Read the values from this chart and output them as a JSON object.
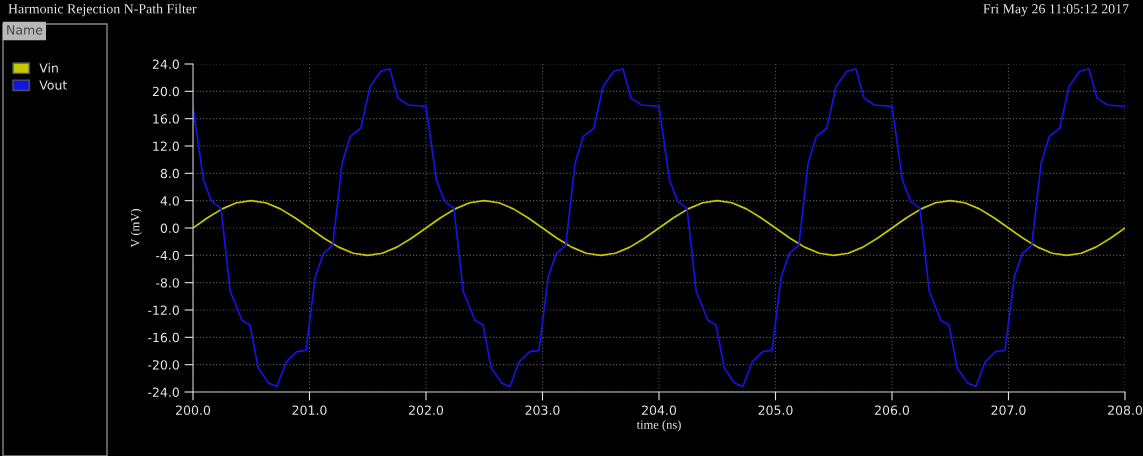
{
  "chart_data": {
    "type": "line",
    "title": "Harmonic Rejection N-Path Filter",
    "xlabel": "time (ns)",
    "ylabel": "V (mV)",
    "annotations": [
      "Fri May 26 11:05:12 2017",
      "Name"
    ],
    "series": [
      {
        "name": "Vin",
        "color": "#c8c800",
        "x": [
          200.0,
          200.125,
          200.25,
          200.375,
          200.5,
          200.625,
          200.75,
          200.875,
          201.0,
          201.125,
          201.25,
          201.375,
          201.5,
          201.625,
          201.75,
          201.875,
          202.0,
          202.125,
          202.25,
          202.375,
          202.5,
          202.625,
          202.75,
          202.875,
          203.0,
          203.125,
          203.25,
          203.375,
          203.5,
          203.625,
          203.75,
          203.875,
          204.0,
          204.125,
          204.25,
          204.375,
          204.5,
          204.625,
          204.75,
          204.875,
          205.0,
          205.125,
          205.25,
          205.375,
          205.5,
          205.625,
          205.75,
          205.875,
          206.0,
          206.125,
          206.25,
          206.375,
          206.5,
          206.625,
          206.75,
          206.875,
          207.0,
          207.125,
          207.25,
          207.375,
          207.5,
          207.625,
          207.75,
          207.875,
          208.0
        ],
        "values": [
          0,
          1.5,
          2.8,
          3.7,
          4.0,
          3.7,
          2.8,
          1.5,
          0,
          -1.5,
          -2.8,
          -3.7,
          -4.0,
          -3.7,
          -2.8,
          -1.5,
          0,
          1.5,
          2.8,
          3.7,
          4.0,
          3.7,
          2.8,
          1.5,
          0,
          -1.5,
          -2.8,
          -3.7,
          -4.0,
          -3.7,
          -2.8,
          -1.5,
          0,
          1.5,
          2.8,
          3.7,
          4.0,
          3.7,
          2.8,
          1.5,
          0,
          -1.5,
          -2.8,
          -3.7,
          -4.0,
          -3.7,
          -2.8,
          -1.5,
          0,
          1.5,
          2.8,
          3.7,
          4.0,
          3.7,
          2.8,
          1.5,
          0,
          -1.5,
          -2.8,
          -3.7,
          -4.0,
          -3.7,
          -2.8,
          -1.5,
          0
        ]
      },
      {
        "name": "Vout",
        "color": "#1414e6",
        "x": [
          200.0,
          200.09,
          200.16,
          200.24,
          200.32,
          200.42,
          200.49,
          200.56,
          200.65,
          200.72,
          200.8,
          200.89,
          200.97,
          201.05,
          201.12,
          201.2,
          201.28,
          201.35,
          201.44,
          201.52,
          201.61,
          201.69,
          201.76,
          201.85,
          202.0,
          202.09,
          202.16,
          202.24,
          202.32,
          202.42,
          202.49,
          202.56,
          202.65,
          202.72,
          202.8,
          202.89,
          202.97,
          203.05,
          203.12,
          203.2,
          203.28,
          203.35,
          203.44,
          203.52,
          203.61,
          203.69,
          203.76,
          203.85,
          204.0,
          204.09,
          204.16,
          204.24,
          204.32,
          204.42,
          204.49,
          204.56,
          204.65,
          204.72,
          204.8,
          204.89,
          204.97,
          205.05,
          205.12,
          205.2,
          205.28,
          205.35,
          205.44,
          205.52,
          205.61,
          205.69,
          205.76,
          205.85,
          206.0,
          206.09,
          206.16,
          206.24,
          206.32,
          206.42,
          206.49,
          206.56,
          206.65,
          206.72,
          206.8,
          206.89,
          206.97,
          207.05,
          207.12,
          207.2,
          207.28,
          207.35,
          207.44,
          207.52,
          207.61,
          207.69,
          207.76,
          207.85,
          208.0
        ],
        "values": [
          17.8,
          7.0,
          3.9,
          2.9,
          -9.3,
          -13.5,
          -14.2,
          -20.5,
          -22.7,
          -23.2,
          -19.6,
          -18.1,
          -17.9,
          -7.1,
          -3.7,
          -2.5,
          9.5,
          13.4,
          14.6,
          20.7,
          22.9,
          23.3,
          19.0,
          18.0,
          17.8,
          7.0,
          3.9,
          2.9,
          -9.3,
          -13.5,
          -14.2,
          -20.5,
          -22.7,
          -23.2,
          -19.6,
          -18.1,
          -17.9,
          -7.1,
          -3.7,
          -2.5,
          9.5,
          13.4,
          14.6,
          20.7,
          22.9,
          23.3,
          19.0,
          18.0,
          17.8,
          7.0,
          3.9,
          2.9,
          -9.3,
          -13.5,
          -14.2,
          -20.5,
          -22.7,
          -23.2,
          -19.6,
          -18.1,
          -17.9,
          -7.1,
          -3.7,
          -2.5,
          9.5,
          13.4,
          14.6,
          20.7,
          22.9,
          23.3,
          19.0,
          18.0,
          17.8,
          7.0,
          3.9,
          2.9,
          -9.3,
          -13.5,
          -14.2,
          -20.5,
          -22.7,
          -23.2,
          -19.6,
          -18.1,
          -17.9,
          -7.1,
          -3.7,
          -2.5,
          9.5,
          13.4,
          14.6,
          20.7,
          22.9,
          23.3,
          19.0,
          18.0,
          17.8
        ]
      }
    ],
    "xlim": [
      200,
      208
    ],
    "ylim": [
      -24,
      24
    ],
    "xticks": [
      {
        "value": 200,
        "label": "200.0"
      },
      {
        "value": 201,
        "label": "201.0"
      },
      {
        "value": 202,
        "label": "202.0"
      },
      {
        "value": 203,
        "label": "203.0"
      },
      {
        "value": 204,
        "label": "204.0"
      },
      {
        "value": 205,
        "label": "205.0"
      },
      {
        "value": 206,
        "label": "206.0"
      },
      {
        "value": 207,
        "label": "207.0"
      },
      {
        "value": 208,
        "label": "208.0"
      }
    ],
    "yticks": [
      {
        "value": -24,
        "label": "-24.0"
      },
      {
        "value": -20,
        "label": "-20.0"
      },
      {
        "value": -16,
        "label": "-16.0"
      },
      {
        "value": -12,
        "label": "-12.0"
      },
      {
        "value": -8,
        "label": "-8.0"
      },
      {
        "value": -4,
        "label": "-4.0"
      },
      {
        "value": 0,
        "label": "0.0"
      },
      {
        "value": 4,
        "label": "4.0"
      },
      {
        "value": 8,
        "label": "8.0"
      },
      {
        "value": 12,
        "label": "12.0"
      },
      {
        "value": 16,
        "label": "16.0"
      },
      {
        "value": 20,
        "label": "20.0"
      },
      {
        "value": 24,
        "label": "24.0"
      }
    ],
    "grid": true,
    "legend": "left",
    "marker": "none",
    "line_style": "solid"
  }
}
